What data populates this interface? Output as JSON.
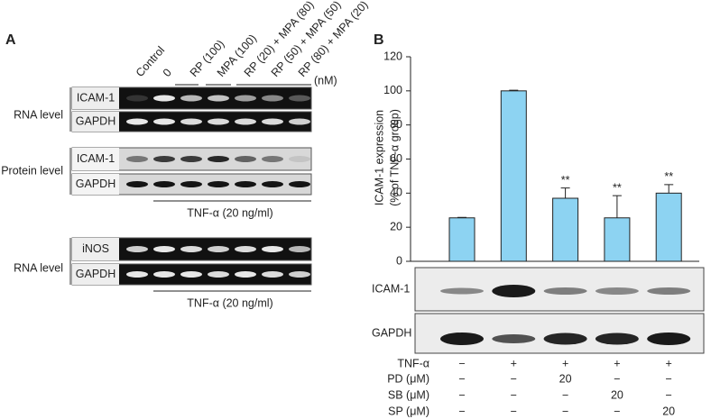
{
  "panel_a": {
    "label": "A",
    "lane_labels": [
      "Control",
      "0",
      "RP (100)",
      "MPA (100)",
      "RP (20) + MPA (80)",
      "RP (50) + MPA (50)",
      "RP (80) + MPA (20)"
    ],
    "unit": "(nM)",
    "groups": [
      "RNA level",
      "Protein level",
      "RNA level"
    ],
    "blot_labels": [
      "ICAM-1",
      "GAPDH",
      "ICAM-1",
      "GAPDH",
      "iNOS",
      "GAPDH"
    ],
    "treatment_labels": [
      "TNF-α (20 ng/ml)",
      "TNF-α (20 ng/ml)"
    ]
  },
  "panel_b": {
    "label": "B",
    "blot_labels": [
      "ICAM-1",
      "GAPDH"
    ],
    "conditions": [
      {
        "label": "TNF-α",
        "cells": [
          "−",
          "+",
          "+",
          "+",
          "+"
        ]
      },
      {
        "label": "PD (μM)",
        "cells": [
          "−",
          "−",
          "20",
          "−",
          "−"
        ]
      },
      {
        "label": "SB (μM)",
        "cells": [
          "−",
          "−",
          "−",
          "20",
          "−"
        ]
      },
      {
        "label": "SP (μM)",
        "cells": [
          "−",
          "−",
          "−",
          "−",
          "20"
        ]
      }
    ]
  },
  "chart_data": {
    "type": "bar",
    "ylabel": [
      "ICAM-1 expression",
      "(% of TNF-α group)"
    ],
    "categories": [
      null,
      null,
      null,
      null,
      null
    ],
    "values": [
      25.5,
      100,
      37,
      25.5,
      40
    ],
    "errors": [
      0.3,
      0.4,
      6,
      13,
      5
    ],
    "annotations": [
      null,
      null,
      "**",
      "**",
      "**"
    ],
    "color": "#8dd3f2",
    "ylim": [
      0,
      120
    ],
    "yticks": [
      0,
      20,
      40,
      60,
      80,
      100,
      120
    ]
  }
}
